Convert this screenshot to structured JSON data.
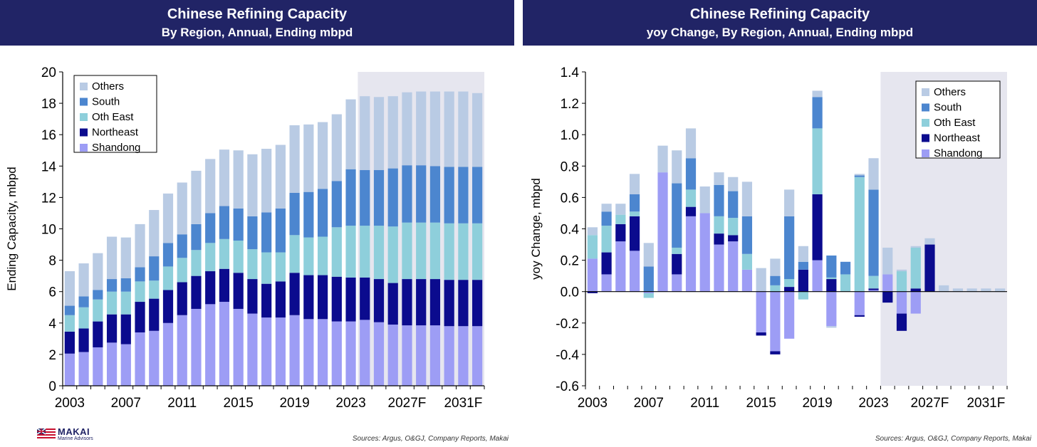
{
  "colors": {
    "Shandong": "#9d9df5",
    "Northeast": "#0b0b8e",
    "Oth East": "#8ecfdb",
    "South": "#4c86cf",
    "Others": "#b9cbe4",
    "header_bg": "#212466",
    "forecast_bg": "#e6e6ef"
  },
  "footer": {
    "logo_text": "MAKAI",
    "logo_subtext": "Marine Advisors",
    "source_left": "Sources: Argus, O&GJ, Company Reports, Makai",
    "source_right": "Sources: Argus, O&GJ, Company Reports, Makai"
  },
  "chart_data": [
    {
      "type": "bar",
      "stacked": true,
      "title": "Chinese Refining Capacity",
      "subtitle": "By Region, Annual, Ending mbpd",
      "ylabel": "Ending Capacity, mbpd",
      "ylim": [
        0,
        20
      ],
      "yticks": [
        0,
        2,
        4,
        6,
        8,
        10,
        12,
        14,
        16,
        18,
        20
      ],
      "xtick_labels": [
        "2003",
        "2007",
        "2011",
        "2015",
        "2019",
        "2023",
        "2027F",
        "2031F"
      ],
      "categories": [
        "2003",
        "2004",
        "2005",
        "2006",
        "2007",
        "2008",
        "2009",
        "2010",
        "2011",
        "2012",
        "2013",
        "2014",
        "2015",
        "2016",
        "2017",
        "2018",
        "2019",
        "2020",
        "2021",
        "2022",
        "2023",
        "2024",
        "2025",
        "2026",
        "2027F",
        "2028",
        "2029",
        "2030",
        "2031F",
        "2032"
      ],
      "forecast_start_index": 21,
      "legend_position": "top-left",
      "legend_order": [
        "Others",
        "South",
        "Oth East",
        "Northeast",
        "Shandong"
      ],
      "series": [
        {
          "name": "Shandong",
          "values": [
            2.05,
            2.15,
            2.45,
            2.75,
            2.65,
            3.4,
            3.5,
            4.0,
            4.5,
            4.9,
            5.2,
            5.35,
            4.9,
            4.6,
            4.35,
            4.35,
            4.5,
            4.25,
            4.25,
            4.1,
            4.1,
            4.2,
            4.05,
            3.9,
            3.85,
            3.85,
            3.85,
            3.8,
            3.8,
            3.8
          ]
        },
        {
          "name": "Northeast",
          "values": [
            1.4,
            1.5,
            1.65,
            1.8,
            1.9,
            1.95,
            2.05,
            2.1,
            2.1,
            2.1,
            2.1,
            2.1,
            2.3,
            2.2,
            2.15,
            2.3,
            2.7,
            2.8,
            2.8,
            2.85,
            2.8,
            2.7,
            2.75,
            2.65,
            2.95,
            2.95,
            2.95,
            2.95,
            2.95,
            2.95
          ]
        },
        {
          "name": "Oth East",
          "values": [
            1.05,
            1.35,
            1.4,
            1.45,
            1.45,
            1.3,
            1.15,
            1.5,
            1.55,
            1.65,
            1.8,
            1.9,
            2.05,
            1.9,
            2.0,
            1.85,
            2.4,
            2.4,
            2.45,
            3.15,
            3.3,
            3.3,
            3.4,
            3.6,
            3.6,
            3.6,
            3.6,
            3.6,
            3.6,
            3.6
          ]
        },
        {
          "name": "South",
          "values": [
            0.6,
            0.7,
            0.6,
            0.8,
            0.85,
            0.9,
            1.55,
            1.5,
            1.5,
            1.65,
            1.9,
            2.1,
            2.05,
            2.1,
            2.55,
            2.8,
            2.7,
            2.9,
            3.05,
            2.95,
            3.6,
            3.55,
            3.55,
            3.7,
            3.65,
            3.65,
            3.6,
            3.6,
            3.6,
            3.6
          ]
        },
        {
          "name": "Others",
          "values": [
            2.2,
            2.1,
            2.35,
            2.7,
            2.6,
            2.75,
            2.95,
            3.15,
            3.3,
            3.4,
            3.45,
            3.6,
            3.7,
            3.95,
            4.05,
            4.05,
            4.3,
            4.3,
            4.25,
            4.25,
            4.45,
            4.7,
            4.65,
            4.6,
            4.65,
            4.7,
            4.75,
            4.8,
            4.8,
            4.7
          ]
        }
      ]
    },
    {
      "type": "bar",
      "stacked": true,
      "title": "Chinese Refining Capacity",
      "subtitle": "yoy Change, By Region, Annual, Ending mbpd",
      "ylabel": "yoy Change, mbpd",
      "ylim": [
        -0.6,
        1.4
      ],
      "yticks": [
        -0.6,
        -0.4,
        -0.2,
        0.0,
        0.2,
        0.4,
        0.6,
        0.8,
        1.0,
        1.2,
        1.4
      ],
      "xtick_labels": [
        "2003",
        "2007",
        "2011",
        "2015",
        "2019",
        "2023",
        "2027F",
        "2031F"
      ],
      "categories": [
        "2003",
        "2004",
        "2005",
        "2006",
        "2007",
        "2008",
        "2009",
        "2010",
        "2011",
        "2012",
        "2013",
        "2014",
        "2015",
        "2016",
        "2017",
        "2018",
        "2019",
        "2020",
        "2021",
        "2022",
        "2023",
        "2024",
        "2025",
        "2026",
        "2027F",
        "2028",
        "2029",
        "2030",
        "2031F",
        "2032"
      ],
      "forecast_start_index": 21,
      "legend_position": "top-right",
      "legend_order": [
        "Others",
        "South",
        "Oth East",
        "Northeast",
        "Shandong"
      ],
      "series": [
        {
          "name": "Shandong",
          "values": [
            0.21,
            0.11,
            0.32,
            0.26,
            -0.01,
            0.76,
            0.11,
            0.48,
            0.5,
            0.3,
            0.32,
            0.14,
            -0.26,
            -0.38,
            -0.3,
            0.0,
            0.2,
            -0.22,
            0.0,
            -0.15,
            0.01,
            0.11,
            -0.14,
            -0.14,
            0.0,
            0.0,
            0.0,
            0.0,
            0.0,
            0.0
          ]
        },
        {
          "name": "Northeast",
          "values": [
            -0.01,
            0.14,
            0.11,
            0.22,
            0.0,
            0.0,
            0.13,
            0.06,
            0.0,
            0.07,
            0.04,
            0.0,
            -0.02,
            -0.02,
            0.03,
            0.14,
            0.42,
            0.08,
            0.0,
            -0.01,
            0.01,
            -0.07,
            -0.11,
            0.02,
            0.3,
            0.0,
            0.0,
            0.0,
            0.0,
            0.0
          ]
        },
        {
          "name": "Oth East",
          "values": [
            0.15,
            0.17,
            0.06,
            0.03,
            -0.03,
            0.0,
            0.04,
            0.11,
            0.0,
            0.11,
            0.11,
            0.1,
            0.0,
            0.04,
            0.05,
            -0.05,
            0.42,
            0.01,
            0.11,
            0.73,
            0.08,
            0.0,
            0.13,
            0.26,
            0.0,
            0.0,
            0.0,
            0.0,
            0.0,
            0.0
          ]
        },
        {
          "name": "South",
          "values": [
            0.0,
            0.09,
            0.0,
            0.11,
            0.16,
            0.0,
            0.41,
            0.2,
            0.0,
            0.2,
            0.17,
            0.24,
            0.0,
            0.06,
            0.4,
            0.05,
            0.2,
            0.14,
            0.08,
            0.01,
            0.55,
            0.0,
            0.0,
            0.0,
            0.0,
            0.0,
            0.0,
            0.0,
            0.0,
            0.0
          ]
        },
        {
          "name": "Others",
          "values": [
            0.05,
            0.05,
            0.07,
            0.13,
            0.15,
            0.17,
            0.21,
            0.19,
            0.17,
            0.08,
            0.09,
            0.22,
            0.15,
            0.11,
            0.17,
            0.1,
            0.04,
            -0.01,
            0.0,
            0.01,
            0.2,
            0.17,
            0.01,
            0.01,
            0.04,
            0.04,
            0.02,
            0.02,
            0.02,
            0.02
          ]
        }
      ]
    }
  ]
}
